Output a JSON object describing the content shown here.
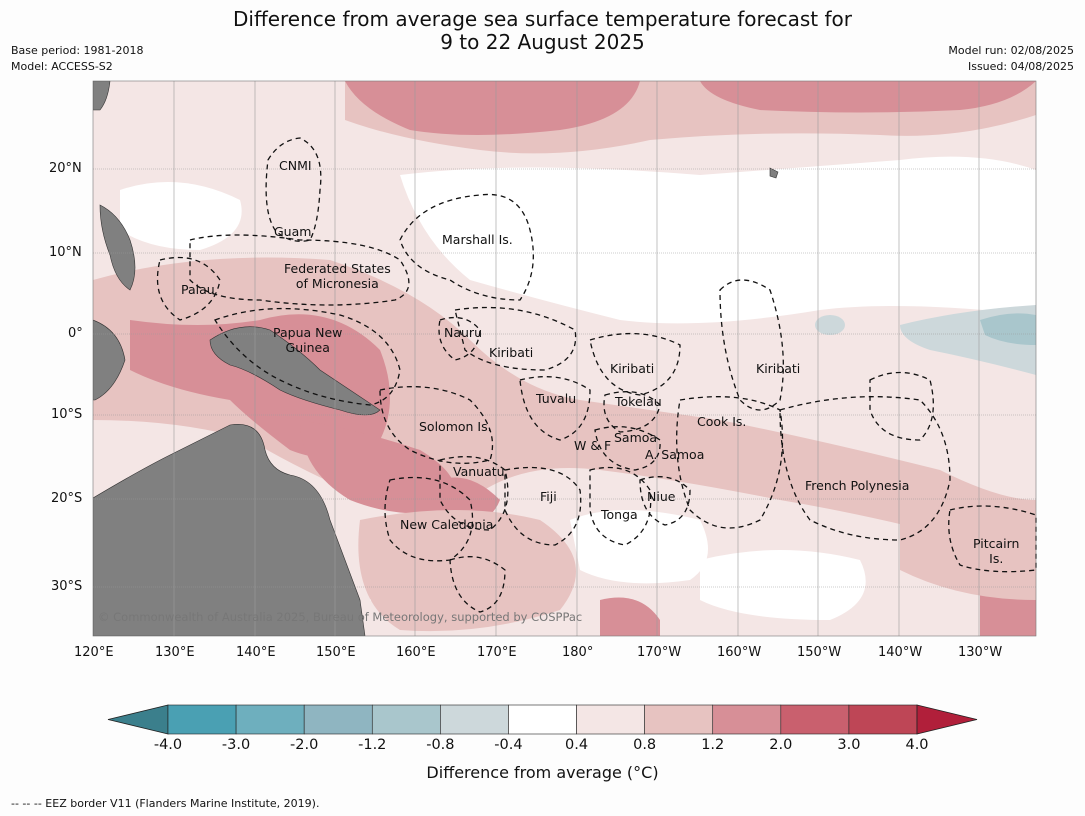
{
  "header": {
    "title_line1": "Difference from average sea surface temperature forecast for",
    "title_line2": "9 to 22 August 2025",
    "base_period": "Base period: 1981-2018",
    "model": "Model: ACCESS-S2",
    "model_run": "Model run: 02/08/2025",
    "issued": "Issued: 04/08/2025"
  },
  "map": {
    "lat_labels": [
      "20°N",
      "10°N",
      "0°",
      "10°S",
      "20°S",
      "30°S"
    ],
    "lon_labels": [
      "120°E",
      "130°E",
      "140°E",
      "150°E",
      "160°E",
      "170°E",
      "180°",
      "170°W",
      "160°W",
      "150°W",
      "140°W",
      "130°W"
    ],
    "copyright": "© Commonwealth of Australia 2025, Bureau of Meteorology, supported by COSPPac",
    "land_color": "#808080",
    "eez_line_style": "dashed"
  },
  "regions": [
    {
      "name": "CNMI"
    },
    {
      "name": "Guam"
    },
    {
      "name": "Marshall Is."
    },
    {
      "name": "Federated States\nof Micronesia"
    },
    {
      "name": "Palau"
    },
    {
      "name": "Papua New\nGuinea"
    },
    {
      "name": "Nauru"
    },
    {
      "name": "Kiribati"
    },
    {
      "name": "Kiribati"
    },
    {
      "name": "Kiribati"
    },
    {
      "name": "Tuvalu"
    },
    {
      "name": "Tokelau"
    },
    {
      "name": "Cook Is."
    },
    {
      "name": "Solomon Is."
    },
    {
      "name": "W & F"
    },
    {
      "name": "Samoa"
    },
    {
      "name": "A. Samoa"
    },
    {
      "name": "Vanuatu"
    },
    {
      "name": "Fiji"
    },
    {
      "name": "Niue"
    },
    {
      "name": "Tonga"
    },
    {
      "name": "French Polynesia"
    },
    {
      "name": "New Caledonia"
    },
    {
      "name": "Pitcairn\nIs."
    }
  ],
  "colorbar": {
    "title": "Difference from average (°C)",
    "tick_labels": [
      "-4.0",
      "-3.0",
      "-2.0",
      "-1.2",
      "-0.8",
      "-0.4",
      "0.4",
      "0.8",
      "1.2",
      "2.0",
      "3.0",
      "4.0"
    ],
    "colors": [
      "#3b7f8c",
      "#4aa0b3",
      "#6eafbe",
      "#8fb5c1",
      "#a9c6cc",
      "#cdd8db",
      "#ffffff",
      "#f4e6e5",
      "#e7c3c1",
      "#d78f97",
      "#c9606e",
      "#be4656",
      "#b11f3a"
    ]
  },
  "footnote": "--  --  -- EEZ border V11 (Flanders Marine Institute, 2019)."
}
